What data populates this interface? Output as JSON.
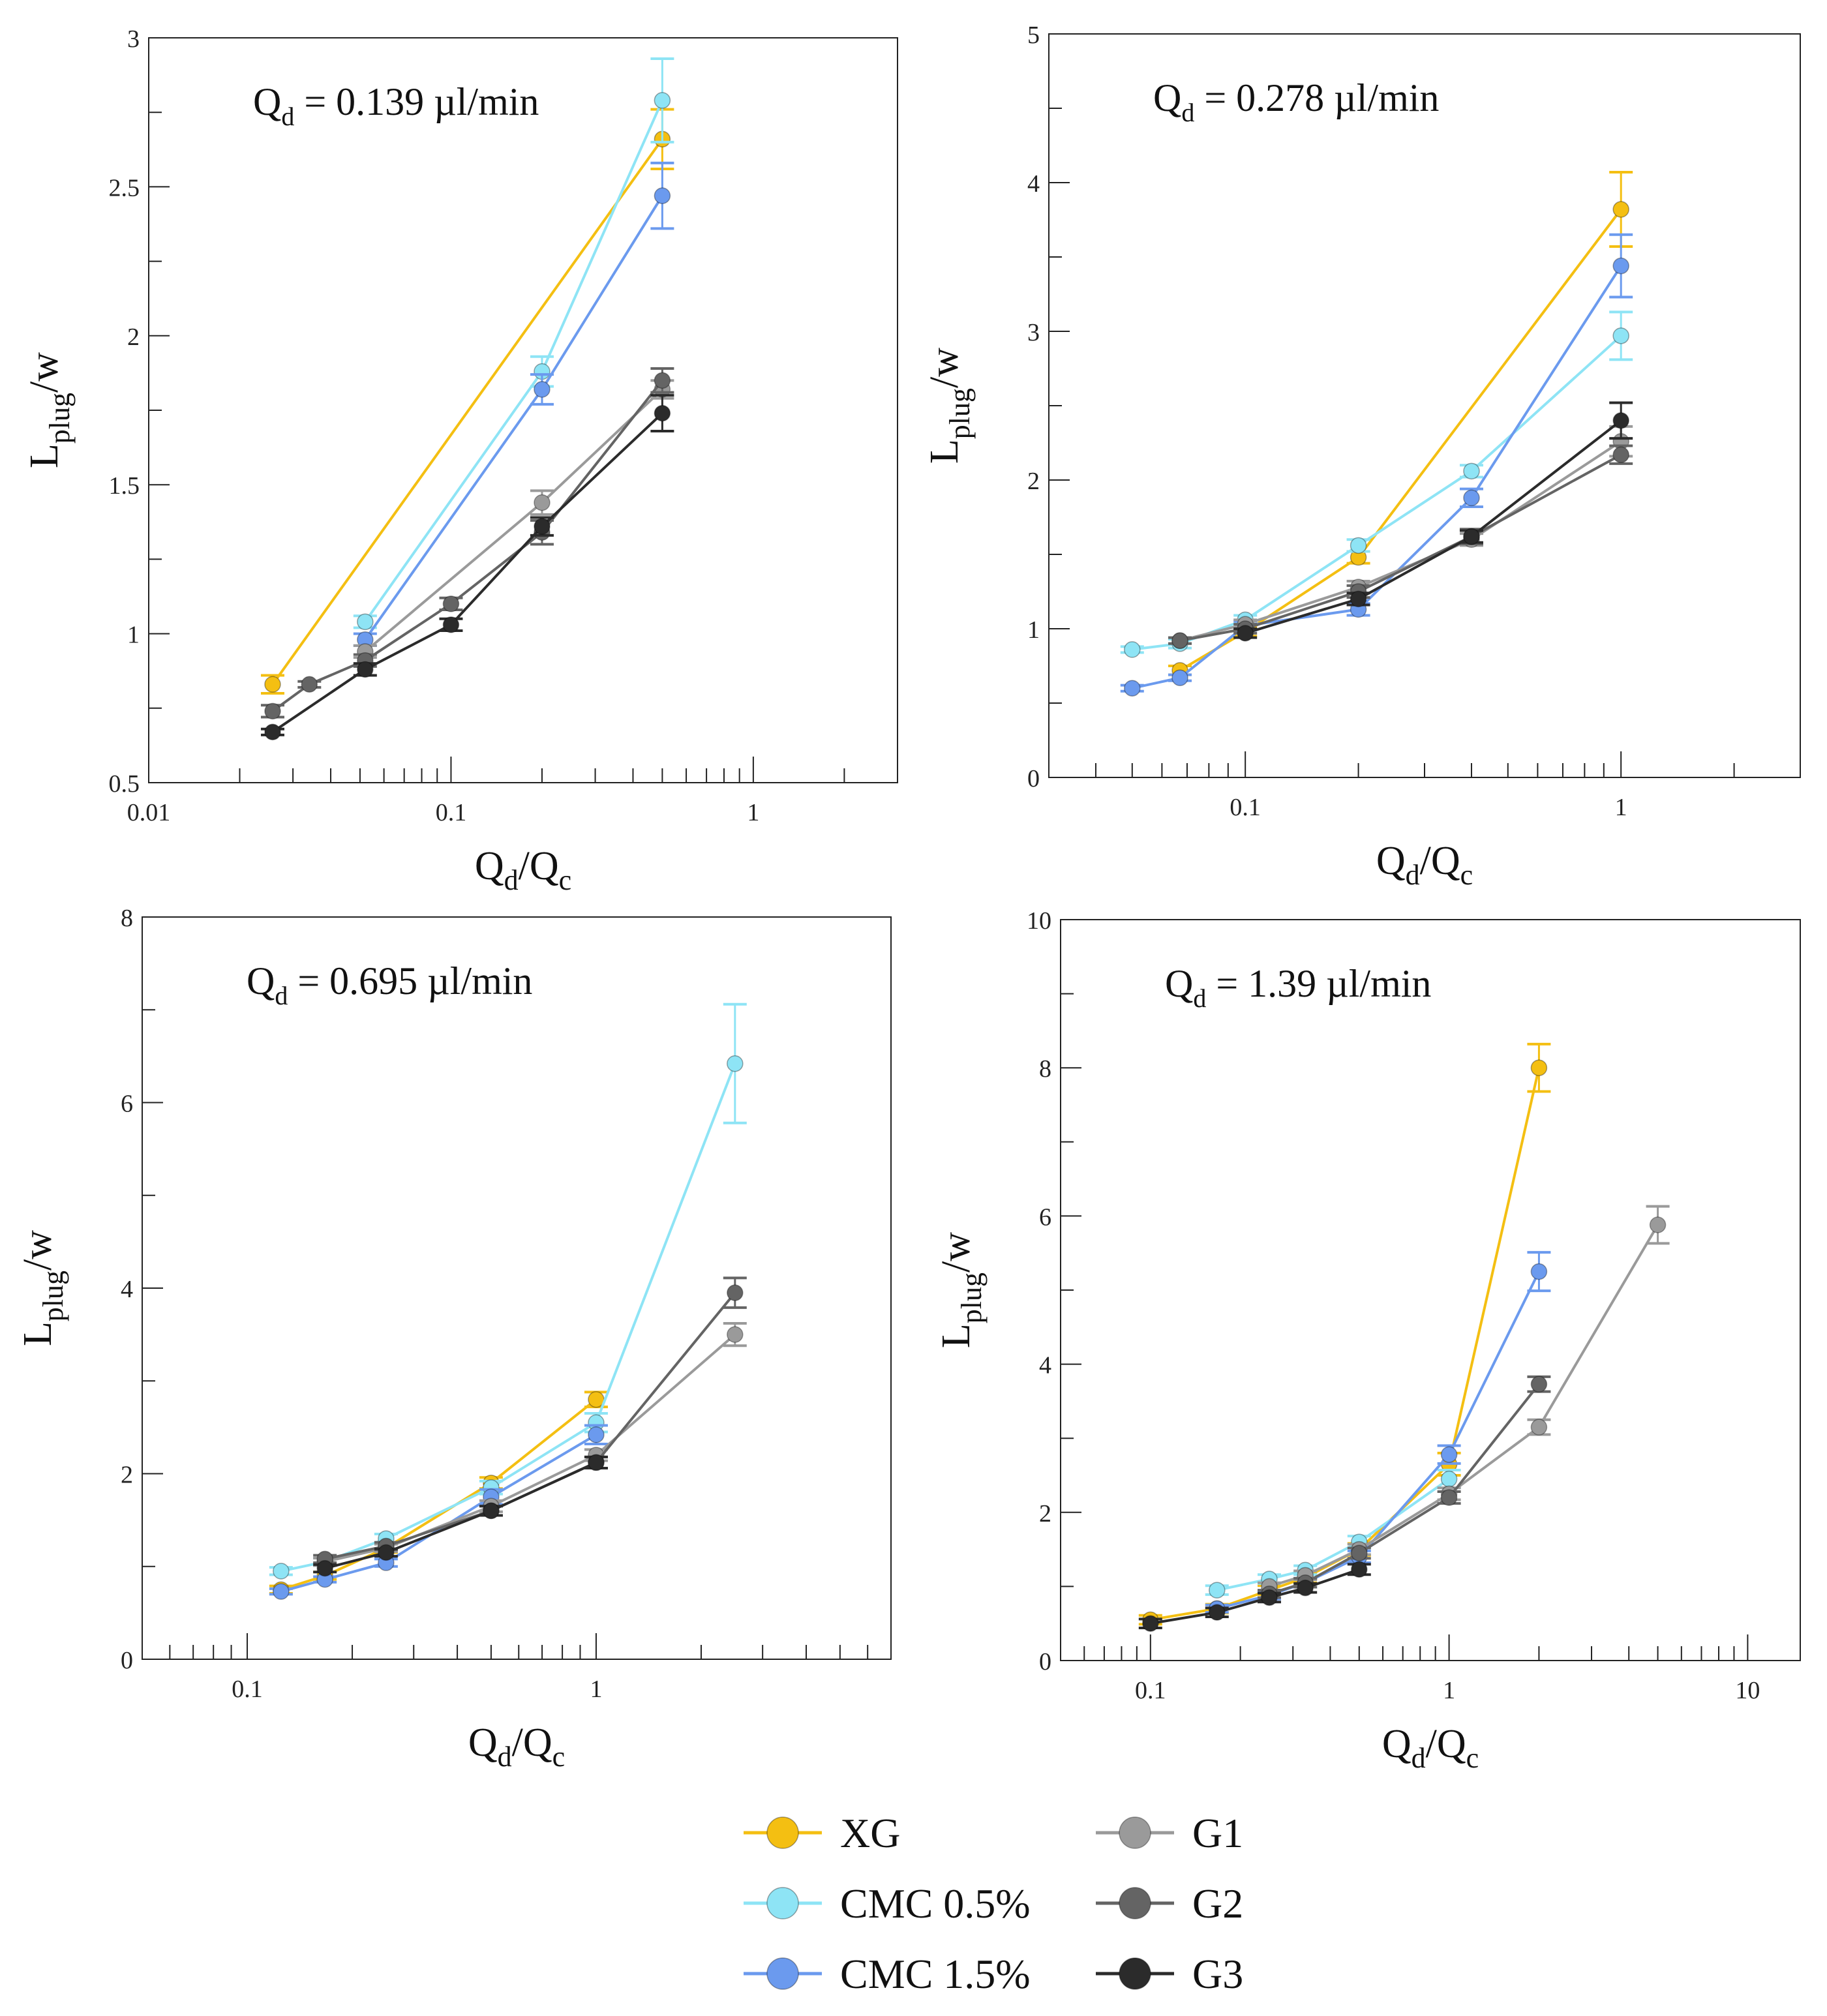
{
  "chart_data": [
    {
      "type": "line",
      "scale": "log-x",
      "annotation": {
        "main": "Q",
        "sub": "d",
        "rest": " = 0.139 µl/min"
      },
      "xlabel": {
        "main1": "Q",
        "sub1": "d",
        "sep": "/Q",
        "sub2": "c"
      },
      "ylabel": {
        "main": "L",
        "sub": "plug",
        "rest": "/w"
      },
      "xlim": [
        0.01,
        3
      ],
      "ylim": [
        0.5,
        3
      ],
      "xticks": [
        {
          "v": 0.01,
          "t": "0.01"
        },
        {
          "v": 0.1,
          "t": "0.1"
        },
        {
          "v": 1,
          "t": "1"
        }
      ],
      "yticks": [
        {
          "v": 0.5,
          "t": "0.5"
        },
        {
          "v": 1,
          "t": "1"
        },
        {
          "v": 1.5,
          "t": "1.5"
        },
        {
          "v": 2,
          "t": "2"
        },
        {
          "v": 2.5,
          "t": "2.5"
        },
        {
          "v": 3,
          "t": "3"
        }
      ],
      "series": [
        {
          "name": "XG",
          "x": [
            0.0257,
            0.5
          ],
          "y": [
            0.83,
            2.66
          ],
          "err": [
            0.03,
            0.1
          ]
        },
        {
          "name": "CMC 0.5%",
          "x": [
            0.052,
            0.2,
            0.5
          ],
          "y": [
            1.04,
            1.88,
            2.79
          ],
          "err": [
            0.02,
            0.05,
            0.14
          ]
        },
        {
          "name": "CMC 1.5%",
          "x": [
            0.052,
            0.2,
            0.5
          ],
          "y": [
            0.98,
            1.82,
            2.47
          ],
          "err": [
            0.02,
            0.05,
            0.11
          ]
        },
        {
          "name": "G1",
          "x": [
            0.052,
            0.2,
            0.5
          ],
          "y": [
            0.94,
            1.44,
            1.82
          ],
          "err": [
            0.02,
            0.04,
            0.03
          ]
        },
        {
          "name": "G2",
          "x": [
            0.0257,
            0.034,
            0.052,
            0.1,
            0.2,
            0.5
          ],
          "y": [
            0.74,
            0.83,
            0.91,
            1.1,
            1.34,
            1.85
          ],
          "err": [
            0.02,
            0.01,
            0.02,
            0.02,
            0.04,
            0.04
          ]
        },
        {
          "name": "G3",
          "x": [
            0.0257,
            0.052,
            0.1,
            0.2,
            0.5
          ],
          "y": [
            0.67,
            0.88,
            1.03,
            1.36,
            1.74
          ],
          "err": [
            0.01,
            0.02,
            0.02,
            0.03,
            0.06
          ]
        }
      ]
    },
    {
      "type": "line",
      "scale": "log-x",
      "annotation": {
        "main": "Q",
        "sub": "d",
        "rest": " = 0.278 µl/min"
      },
      "xlabel": {
        "main1": "Q",
        "sub1": "d",
        "sep": "/Q",
        "sub2": "c"
      },
      "ylabel": {
        "main": "L",
        "sub": "plug",
        "rest": "/w"
      },
      "xlim": [
        0.03,
        3
      ],
      "ylim": [
        0,
        5
      ],
      "xticks": [
        {
          "v": 0.1,
          "t": "0.1"
        },
        {
          "v": 1,
          "t": "1"
        }
      ],
      "yticks": [
        {
          "v": 0,
          "t": "0"
        },
        {
          "v": 1,
          "t": "1"
        },
        {
          "v": 2,
          "t": "2"
        },
        {
          "v": 3,
          "t": "3"
        },
        {
          "v": 4,
          "t": "4"
        },
        {
          "v": 5,
          "t": "5"
        }
      ],
      "series": [
        {
          "name": "XG",
          "x": [
            0.067,
            0.1,
            0.2,
            1
          ],
          "y": [
            0.72,
            0.98,
            1.48,
            3.82
          ],
          "err": [
            0.03,
            0.03,
            0.04,
            0.25
          ]
        },
        {
          "name": "CMC 0.5%",
          "x": [
            0.05,
            0.067,
            0.1,
            0.2,
            0.4,
            1
          ],
          "y": [
            0.86,
            0.9,
            1.06,
            1.56,
            2.06,
            2.97
          ],
          "err": [
            0.02,
            0.03,
            0.03,
            0.04,
            0.04,
            0.16
          ]
        },
        {
          "name": "CMC 1.5%",
          "x": [
            0.05,
            0.067,
            0.1,
            0.2,
            0.4,
            1
          ],
          "y": [
            0.6,
            0.67,
            1.02,
            1.13,
            1.88,
            3.44
          ],
          "err": [
            0.02,
            0.02,
            0.03,
            0.04,
            0.06,
            0.21
          ]
        },
        {
          "name": "G1",
          "x": [
            0.067,
            0.1,
            0.2,
            0.4,
            1
          ],
          "y": [
            0.92,
            1.03,
            1.28,
            1.6,
            2.26
          ],
          "err": [
            0.02,
            0.03,
            0.04,
            0.04,
            0.1
          ]
        },
        {
          "name": "G2",
          "x": [
            0.067,
            0.1,
            0.2,
            0.4,
            1
          ],
          "y": [
            0.92,
            1.0,
            1.25,
            1.62,
            2.17
          ],
          "err": [
            0.02,
            0.03,
            0.04,
            0.05,
            0.06
          ]
        },
        {
          "name": "G3",
          "x": [
            0.1,
            0.2,
            0.4,
            1
          ],
          "y": [
            0.97,
            1.2,
            1.62,
            2.4
          ],
          "err": [
            0.03,
            0.04,
            0.04,
            0.12
          ]
        }
      ]
    },
    {
      "type": "line",
      "scale": "log-x",
      "annotation": {
        "main": "Q",
        "sub": "d",
        "rest": " = 0.695 µl/min"
      },
      "xlabel": {
        "main1": "Q",
        "sub1": "d",
        "sep": "/Q",
        "sub2": "c"
      },
      "ylabel": {
        "main": "L",
        "sub": "plug",
        "rest": "/w"
      },
      "xlim": [
        0.05,
        7
      ],
      "ylim": [
        0,
        8
      ],
      "xticks": [
        {
          "v": 0.1,
          "t": "0.1"
        },
        {
          "v": 1,
          "t": "1"
        }
      ],
      "yticks": [
        {
          "v": 0,
          "t": "0"
        },
        {
          "v": 2,
          "t": "2"
        },
        {
          "v": 4,
          "t": "4"
        },
        {
          "v": 6,
          "t": "6"
        },
        {
          "v": 8,
          "t": "8"
        }
      ],
      "series": [
        {
          "name": "XG",
          "x": [
            0.125,
            0.167,
            0.25,
            0.5,
            1
          ],
          "y": [
            0.75,
            0.9,
            1.2,
            1.9,
            2.8
          ],
          "err": [
            0.04,
            0.04,
            0.05,
            0.06,
            0.08
          ]
        },
        {
          "name": "CMC 0.5%",
          "x": [
            0.125,
            0.167,
            0.25,
            0.5,
            1,
            2.5
          ],
          "y": [
            0.95,
            1.05,
            1.3,
            1.85,
            2.55,
            6.42
          ],
          "err": [
            0.04,
            0.04,
            0.05,
            0.07,
            0.1,
            0.64
          ]
        },
        {
          "name": "CMC 1.5%",
          "x": [
            0.125,
            0.167,
            0.25,
            0.5,
            1
          ],
          "y": [
            0.73,
            0.86,
            1.04,
            1.75,
            2.42
          ],
          "err": [
            0.03,
            0.03,
            0.04,
            0.08,
            0.1
          ]
        },
        {
          "name": "G1",
          "x": [
            0.167,
            0.25,
            0.5,
            1,
            2.5
          ],
          "y": [
            1.05,
            1.2,
            1.65,
            2.2,
            3.5
          ],
          "err": [
            0.04,
            0.04,
            0.06,
            0.06,
            0.12
          ]
        },
        {
          "name": "G2",
          "x": [
            0.167,
            0.25,
            0.5,
            1,
            2.5
          ],
          "y": [
            1.08,
            1.22,
            1.6,
            2.12,
            3.95
          ],
          "err": [
            0.04,
            0.04,
            0.05,
            0.06,
            0.16
          ]
        },
        {
          "name": "G3",
          "x": [
            0.167,
            0.25,
            0.5,
            1
          ],
          "y": [
            0.98,
            1.15,
            1.6,
            2.12
          ],
          "err": [
            0.04,
            0.04,
            0.05,
            0.06
          ]
        }
      ]
    },
    {
      "type": "line",
      "scale": "log-x",
      "annotation": {
        "main": "Q",
        "sub": "d",
        "rest": " = 1.39 µl/min"
      },
      "xlabel": {
        "main1": "Q",
        "sub1": "d",
        "sep": "/Q",
        "sub2": "c"
      },
      "ylabel": {
        "main": "L",
        "sub": "plug",
        "rest": "/w"
      },
      "xlim": [
        0.05,
        15
      ],
      "ylim": [
        0,
        10
      ],
      "xticks": [
        {
          "v": 0.1,
          "t": "0.1"
        },
        {
          "v": 1,
          "t": "1"
        },
        {
          "v": 10,
          "t": "10"
        }
      ],
      "yticks": [
        {
          "v": 0,
          "t": "0"
        },
        {
          "v": 2,
          "t": "2"
        },
        {
          "v": 4,
          "t": "4"
        },
        {
          "v": 6,
          "t": "6"
        },
        {
          "v": 8,
          "t": "8"
        },
        {
          "v": 10,
          "t": "10"
        }
      ],
      "series": [
        {
          "name": "XG",
          "x": [
            0.1,
            0.167,
            0.25,
            0.33,
            0.5,
            1,
            2
          ],
          "y": [
            0.55,
            0.7,
            0.95,
            1.12,
            1.5,
            2.65,
            8.0
          ],
          "err": [
            0.06,
            0.06,
            0.06,
            0.07,
            0.08,
            0.15,
            0.32
          ]
        },
        {
          "name": "CMC 0.5%",
          "x": [
            0.167,
            0.25,
            0.33,
            0.5,
            1
          ],
          "y": [
            0.95,
            1.1,
            1.22,
            1.6,
            2.45
          ],
          "err": [
            0.06,
            0.06,
            0.06,
            0.08,
            0.12
          ]
        },
        {
          "name": "CMC 1.5%",
          "x": [
            0.167,
            0.25,
            0.33,
            0.5,
            1,
            2
          ],
          "y": [
            0.7,
            0.88,
            1.05,
            1.4,
            2.78,
            5.25
          ],
          "err": [
            0.05,
            0.05,
            0.06,
            0.08,
            0.12,
            0.26
          ]
        },
        {
          "name": "G1",
          "x": [
            0.25,
            0.33,
            0.5,
            1,
            2,
            5
          ],
          "y": [
            1.0,
            1.15,
            1.5,
            2.25,
            3.15,
            5.88
          ],
          "err": [
            0.05,
            0.06,
            0.07,
            0.08,
            0.1,
            0.25
          ]
        },
        {
          "name": "G2",
          "x": [
            0.25,
            0.33,
            0.5,
            1,
            2
          ],
          "y": [
            0.9,
            1.05,
            1.45,
            2.2,
            3.73
          ],
          "err": [
            0.05,
            0.06,
            0.07,
            0.08,
            0.1
          ]
        },
        {
          "name": "G3",
          "x": [
            0.1,
            0.167,
            0.25,
            0.33,
            0.5
          ],
          "y": [
            0.5,
            0.65,
            0.85,
            0.98,
            1.23
          ],
          "err": [
            0.06,
            0.06,
            0.06,
            0.06,
            0.07
          ]
        }
      ]
    }
  ],
  "legend": {
    "entries": [
      {
        "name": "XG",
        "label": "XG"
      },
      {
        "name": "CMC 0.5%",
        "label": "CMC 0.5%"
      },
      {
        "name": "CMC 1.5%",
        "label": "CMC 1.5%"
      },
      {
        "name": "G1",
        "label": "G1"
      },
      {
        "name": "G2",
        "label": "G2"
      },
      {
        "name": "G3",
        "label": "G3"
      }
    ]
  },
  "colors": {
    "XG": "#f4bf12",
    "CMC 0.5%": "#8ee4f5",
    "CMC 1.5%": "#6b9aee",
    "G1": "#9a9a9a",
    "G2": "#646464",
    "G3": "#2b2b2b"
  }
}
